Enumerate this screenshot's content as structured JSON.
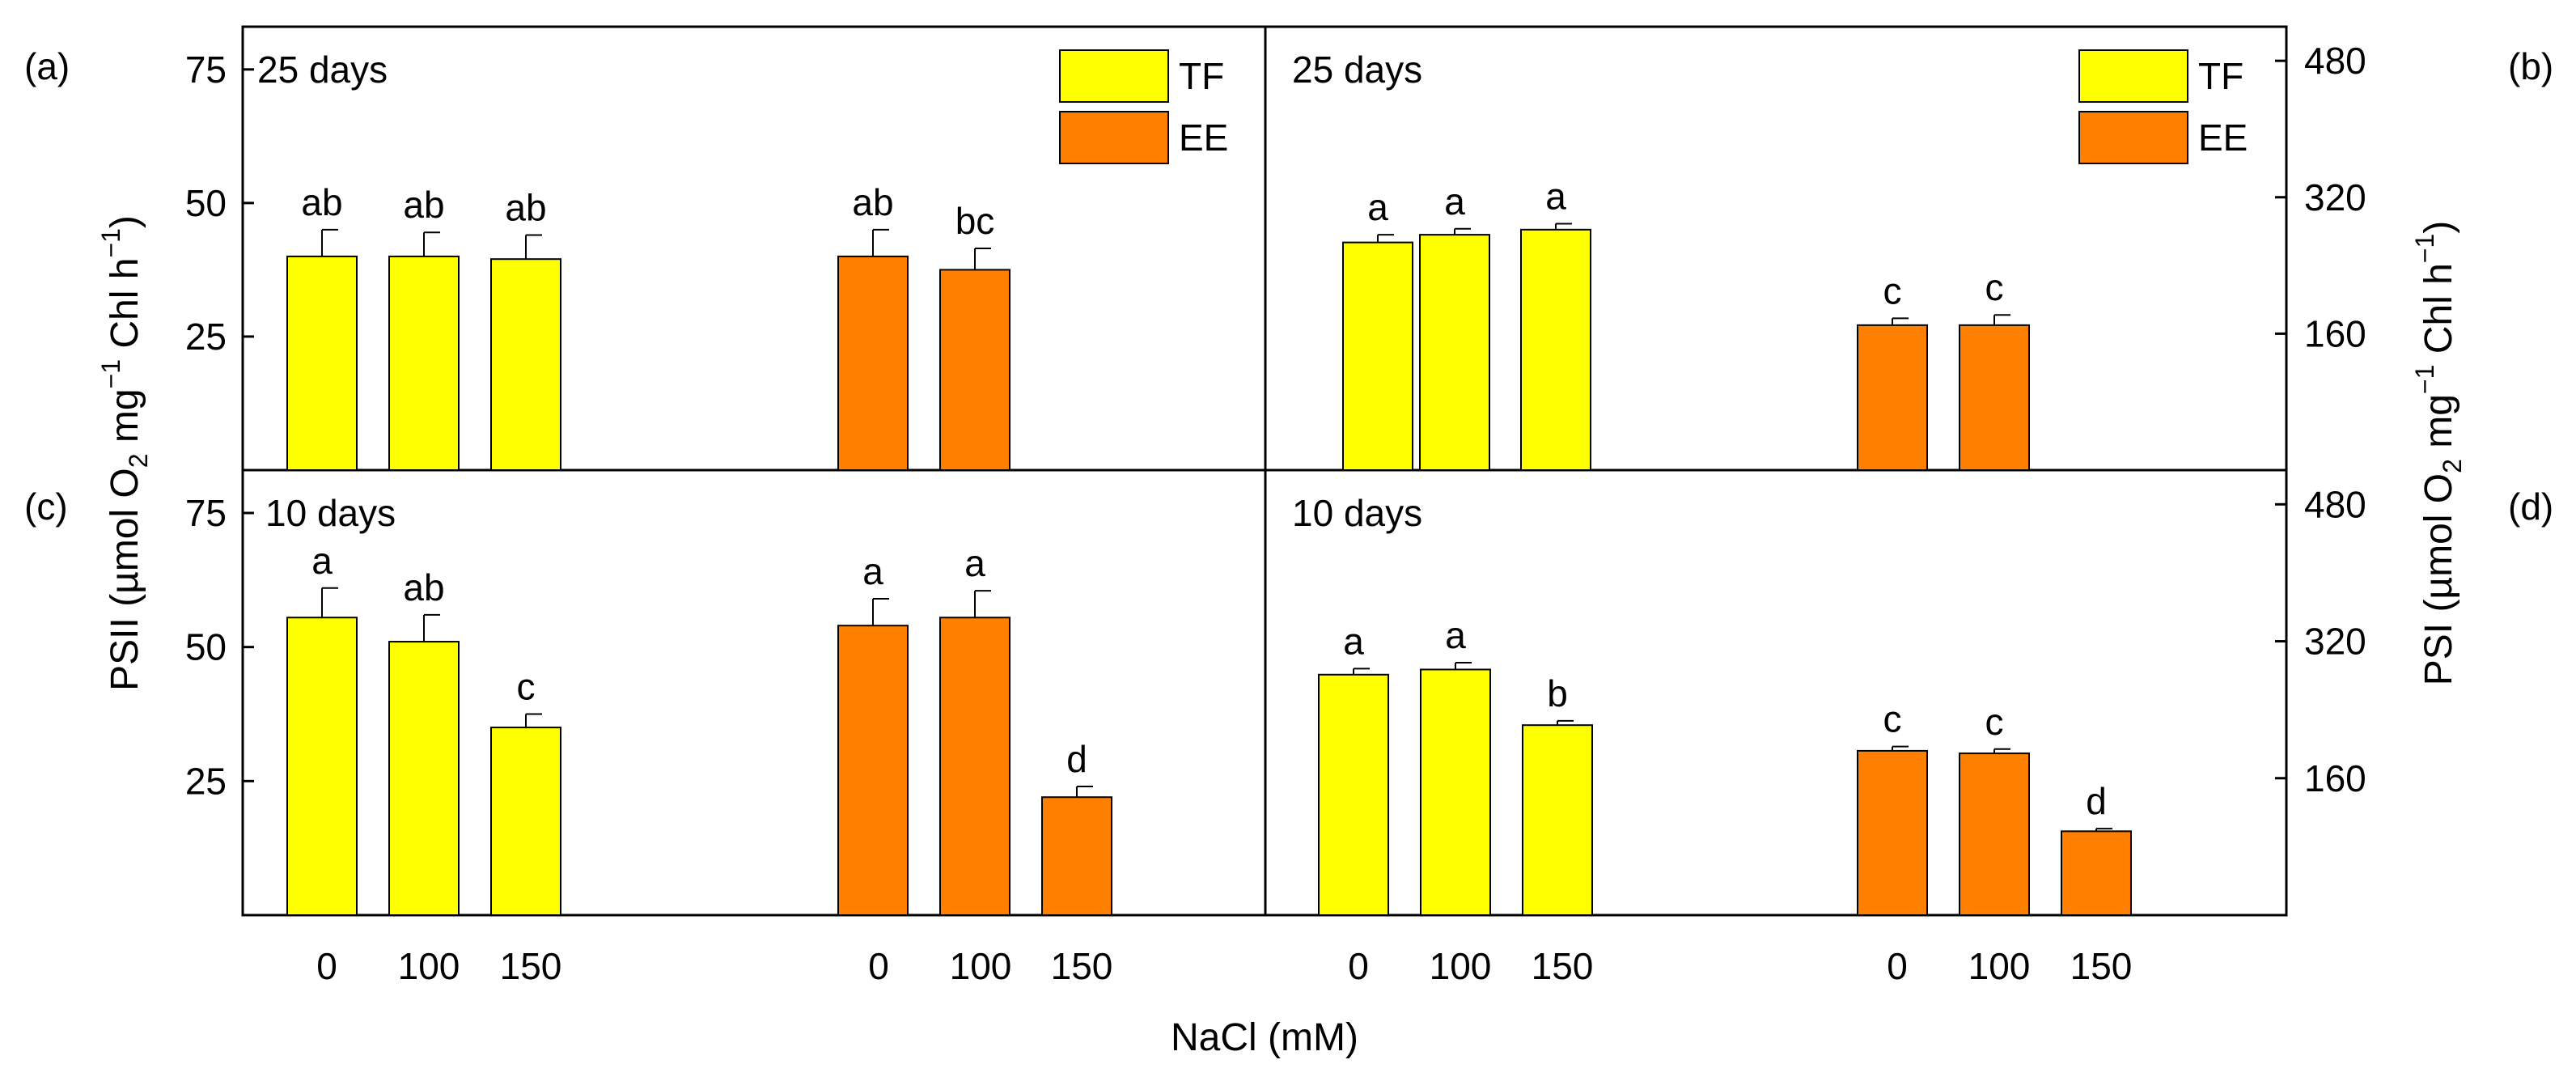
{
  "colors": {
    "TF": "#FFFF00",
    "EE": "#FF8000"
  },
  "chart_data": [
    {
      "panel": "(a)",
      "type": "bar",
      "title": "25 days",
      "ylabel": "PSII (µmol O2 mg-1 Chl h-1)",
      "xlabel": "NaCl (mM)",
      "ylim": [
        0,
        83
      ],
      "yticks": [
        25,
        50,
        75
      ],
      "axis_side": "left",
      "legend": [
        "TF",
        "EE"
      ],
      "legend_position": "top-right",
      "series": [
        {
          "name": "TF",
          "categories": [
            "0",
            "100",
            "150"
          ],
          "values": [
            40.0,
            40.0,
            39.5
          ],
          "errors": [
            5.0,
            4.5,
            4.5
          ],
          "letters": [
            "ab",
            "ab",
            "ab"
          ]
        },
        {
          "name": "EE",
          "categories": [
            "0",
            "100"
          ],
          "values": [
            40.0,
            37.5
          ],
          "errors": [
            5.0,
            4.0
          ],
          "letters": [
            "ab",
            "bc"
          ]
        }
      ]
    },
    {
      "panel": "(b)",
      "type": "bar",
      "title": "25 days",
      "ylabel": "PSI (µmol O2 mg-1 Chl h-1)",
      "xlabel": "NaCl (mM)",
      "ylim": [
        0,
        520
      ],
      "yticks": [
        160,
        320,
        480
      ],
      "axis_side": "right",
      "legend": [
        "TF",
        "EE"
      ],
      "legend_position": "top-right",
      "series": [
        {
          "name": "TF",
          "categories": [
            "0",
            "100",
            "150"
          ],
          "values": [
            267,
            276,
            282
          ],
          "errors": [
            9,
            7,
            7
          ],
          "letters": [
            "a",
            "a",
            "a"
          ]
        },
        {
          "name": "EE",
          "categories": [
            "0",
            "100"
          ],
          "values": [
            170,
            170
          ],
          "errors": [
            8,
            12
          ],
          "letters": [
            "c",
            "c"
          ]
        }
      ]
    },
    {
      "panel": "(c)",
      "type": "bar",
      "title": "10 days",
      "ylabel": "PSII (µmol O2 mg-1 Chl h-1)",
      "xlabel": "NaCl (mM)",
      "ylim": [
        0,
        83
      ],
      "yticks": [
        25,
        50,
        75
      ],
      "axis_side": "left",
      "legend": [
        "TF",
        "EE"
      ],
      "series": [
        {
          "name": "TF",
          "categories": [
            "0",
            "100",
            "150"
          ],
          "values": [
            55.5,
            51.0,
            35.0
          ],
          "errors": [
            5.5,
            5.0,
            2.5
          ],
          "letters": [
            "a",
            "ab",
            "c"
          ]
        },
        {
          "name": "EE",
          "categories": [
            "0",
            "100",
            "150"
          ],
          "values": [
            54.0,
            55.5,
            22.0
          ],
          "errors": [
            5.0,
            5.0,
            2.0
          ],
          "letters": [
            "a",
            "a",
            "d"
          ]
        }
      ]
    },
    {
      "panel": "(d)",
      "type": "bar",
      "title": "10 days",
      "ylabel": "PSI (µmol O2 mg-1 Chl h-1)",
      "xlabel": "NaCl (mM)",
      "ylim": [
        0,
        520
      ],
      "yticks": [
        160,
        320,
        480
      ],
      "axis_side": "right",
      "legend": [
        "TF",
        "EE"
      ],
      "series": [
        {
          "name": "TF",
          "categories": [
            "0",
            "100",
            "150"
          ],
          "values": [
            281,
            287,
            222
          ],
          "errors": [
            7,
            8,
            5
          ],
          "letters": [
            "a",
            "a",
            "b"
          ]
        },
        {
          "name": "EE",
          "categories": [
            "0",
            "100",
            "150"
          ],
          "values": [
            192,
            189,
            98
          ],
          "errors": [
            5,
            5,
            3
          ],
          "letters": [
            "c",
            "c",
            "d"
          ]
        }
      ]
    }
  ],
  "axis_labels": {
    "left_main": "PSII (µmol O",
    "left_sub": "2",
    "left_mid": " mg",
    "left_sup": "−1",
    "left_end": " Chl h",
    "left_sup2": "−1",
    "left_close": ")",
    "right_main": "PSI (µmol O",
    "right_sub": "2",
    "right_mid": " mg",
    "right_sup": "−1",
    "right_end": " Chl h",
    "right_sup2": "−1",
    "right_close": ")",
    "x": "NaCl (mM)"
  }
}
